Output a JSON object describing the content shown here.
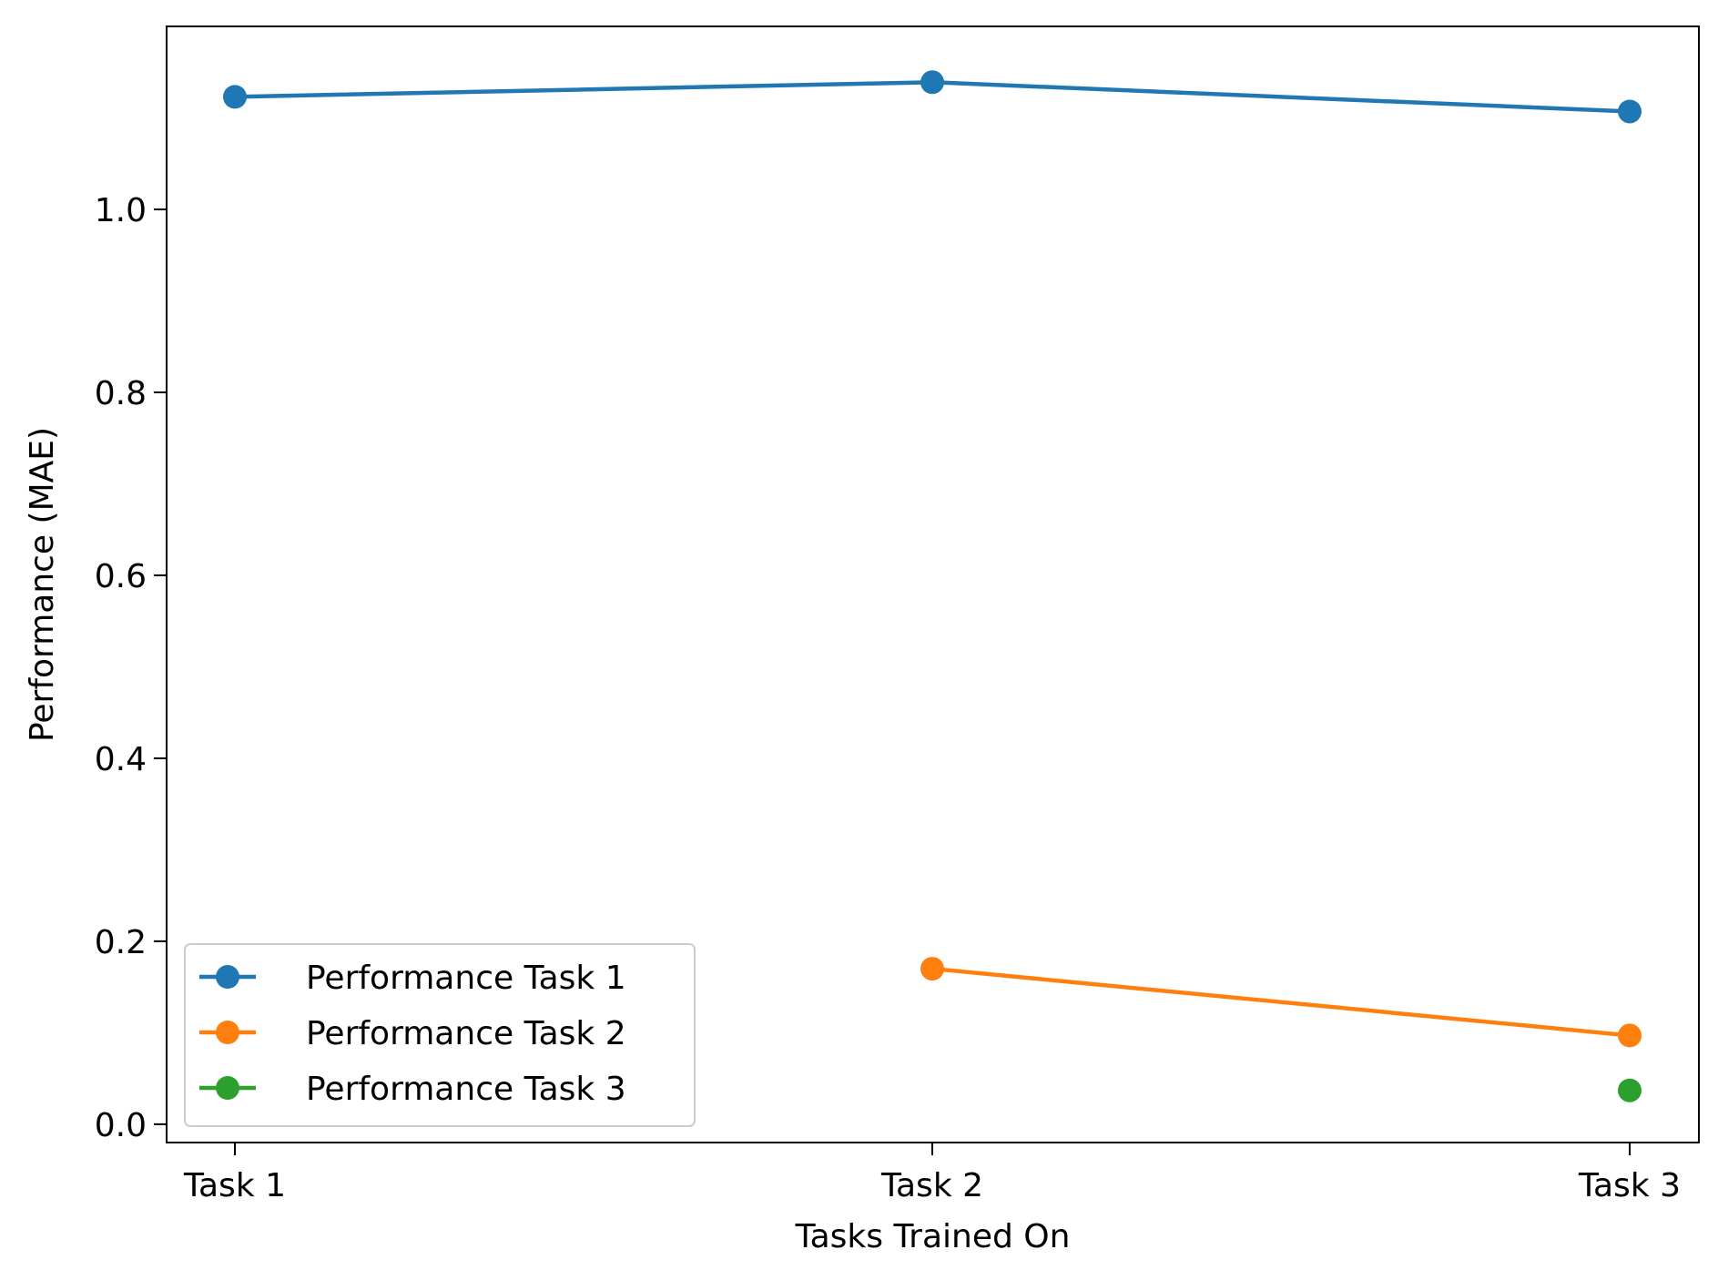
{
  "chart_data": {
    "type": "line",
    "title": "",
    "xlabel": "Tasks Trained On",
    "ylabel": "Performance (MAE)",
    "categories": [
      "Task 1",
      "Task 2",
      "Task 3"
    ],
    "ylim": [
      -0.02,
      1.2
    ],
    "yticks": [
      "0.0",
      "0.2",
      "0.4",
      "0.6",
      "0.8",
      "1.0"
    ],
    "grid": false,
    "legend_position": "lower-left",
    "series": [
      {
        "name": "Performance Task 1",
        "color": "#1f77b4",
        "x": [
          "Task 1",
          "Task 2",
          "Task 3"
        ],
        "values": [
          1.123,
          1.139,
          1.107
        ]
      },
      {
        "name": "Performance Task 2",
        "color": "#ff7f0e",
        "x": [
          "Task 2",
          "Task 3"
        ],
        "values": [
          0.17,
          0.097
        ]
      },
      {
        "name": "Performance Task 3",
        "color": "#2ca02c",
        "x": [
          "Task 3"
        ],
        "values": [
          0.037
        ]
      }
    ]
  }
}
